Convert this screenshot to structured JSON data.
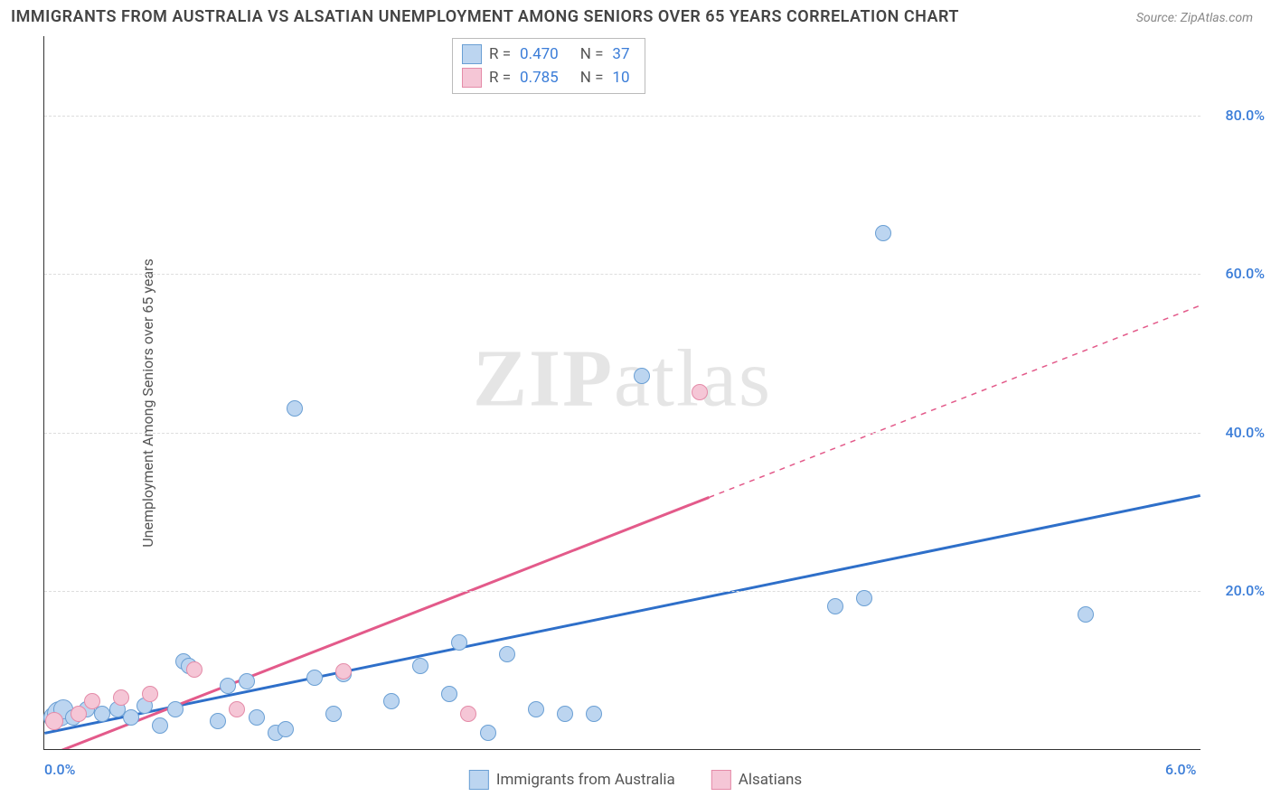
{
  "title": "IMMIGRANTS FROM AUSTRALIA VS ALSATIAN UNEMPLOYMENT AMONG SENIORS OVER 65 YEARS CORRELATION CHART",
  "source_label": "Source:",
  "source_value": "ZipAtlas.com",
  "y_axis_label": "Unemployment Among Seniors over 65 years",
  "watermark_left": "ZIP",
  "watermark_right": "atlas",
  "chart": {
    "type": "scatter-with-regression",
    "xlim": [
      0.0,
      6.0
    ],
    "ylim": [
      0.0,
      90.0
    ],
    "x_ticks": [
      {
        "value": 0.0,
        "label": "0.0%"
      },
      {
        "value": 6.0,
        "label": "6.0%"
      }
    ],
    "y_ticks": [
      {
        "value": 20.0,
        "label": "20.0%"
      },
      {
        "value": 40.0,
        "label": "40.0%"
      },
      {
        "value": 60.0,
        "label": "60.0%"
      },
      {
        "value": 80.0,
        "label": "80.0%"
      }
    ],
    "grid_color": "#dddddd",
    "background_color": "#ffffff",
    "axis_color": "#333333",
    "tick_label_color": "#3b7dd8",
    "series": [
      {
        "id": "australia",
        "label": "Immigrants from Australia",
        "fill_color": "#bcd5f0",
        "stroke_color": "#6a9fd4",
        "line_color": "#2e6fc9",
        "line_width": 3,
        "line_dash": "none",
        "marker_radius": 9,
        "correlation_r": "0.470",
        "correlation_n": "37",
        "regression": {
          "x1": 0.0,
          "y1": 2.0,
          "x2": 6.0,
          "y2": 32.0,
          "solid_until_x": 6.0
        },
        "points": [
          {
            "x": 0.05,
            "y": 4.0,
            "r": 12
          },
          {
            "x": 0.08,
            "y": 4.5,
            "r": 14
          },
          {
            "x": 0.1,
            "y": 5.0,
            "r": 11
          },
          {
            "x": 0.15,
            "y": 4.0,
            "r": 9
          },
          {
            "x": 0.22,
            "y": 5.0,
            "r": 9
          },
          {
            "x": 0.3,
            "y": 4.5,
            "r": 9
          },
          {
            "x": 0.38,
            "y": 5.0,
            "r": 9
          },
          {
            "x": 0.45,
            "y": 4.0,
            "r": 9
          },
          {
            "x": 0.52,
            "y": 5.5,
            "r": 9
          },
          {
            "x": 0.6,
            "y": 3.0,
            "r": 9
          },
          {
            "x": 0.68,
            "y": 5.0,
            "r": 9
          },
          {
            "x": 0.72,
            "y": 11.0,
            "r": 9
          },
          {
            "x": 0.75,
            "y": 10.5,
            "r": 9
          },
          {
            "x": 0.9,
            "y": 3.5,
            "r": 9
          },
          {
            "x": 0.95,
            "y": 8.0,
            "r": 9
          },
          {
            "x": 1.05,
            "y": 8.5,
            "r": 9
          },
          {
            "x": 1.1,
            "y": 4.0,
            "r": 9
          },
          {
            "x": 1.2,
            "y": 2.0,
            "r": 9
          },
          {
            "x": 1.25,
            "y": 2.5,
            "r": 9
          },
          {
            "x": 1.3,
            "y": 43.0,
            "r": 9
          },
          {
            "x": 1.4,
            "y": 9.0,
            "r": 9
          },
          {
            "x": 1.5,
            "y": 4.5,
            "r": 9
          },
          {
            "x": 1.55,
            "y": 9.5,
            "r": 9
          },
          {
            "x": 1.8,
            "y": 6.0,
            "r": 9
          },
          {
            "x": 1.95,
            "y": 10.5,
            "r": 9
          },
          {
            "x": 2.1,
            "y": 7.0,
            "r": 9
          },
          {
            "x": 2.15,
            "y": 13.5,
            "r": 9
          },
          {
            "x": 2.3,
            "y": 2.0,
            "r": 9
          },
          {
            "x": 2.4,
            "y": 12.0,
            "r": 9
          },
          {
            "x": 2.55,
            "y": 5.0,
            "r": 9
          },
          {
            "x": 2.7,
            "y": 4.5,
            "r": 9
          },
          {
            "x": 2.85,
            "y": 4.5,
            "r": 9
          },
          {
            "x": 3.1,
            "y": 47.0,
            "r": 9
          },
          {
            "x": 4.1,
            "y": 18.0,
            "r": 9
          },
          {
            "x": 4.25,
            "y": 19.0,
            "r": 9
          },
          {
            "x": 4.35,
            "y": 65.0,
            "r": 9
          },
          {
            "x": 5.4,
            "y": 17.0,
            "r": 9
          }
        ]
      },
      {
        "id": "alsatians",
        "label": "Alsatians",
        "fill_color": "#f5c6d6",
        "stroke_color": "#e48ba8",
        "line_color": "#e35a8a",
        "line_width": 3,
        "line_dash": "none",
        "marker_radius": 9,
        "correlation_r": "0.785",
        "correlation_n": "10",
        "regression": {
          "x1": 0.0,
          "y1": -1.0,
          "x2": 6.0,
          "y2": 56.0,
          "solid_until_x": 3.45
        },
        "points": [
          {
            "x": 0.05,
            "y": 3.5,
            "r": 10
          },
          {
            "x": 0.18,
            "y": 4.5,
            "r": 9
          },
          {
            "x": 0.25,
            "y": 6.0,
            "r": 9
          },
          {
            "x": 0.4,
            "y": 6.5,
            "r": 9
          },
          {
            "x": 0.55,
            "y": 7.0,
            "r": 9
          },
          {
            "x": 0.78,
            "y": 10.0,
            "r": 9
          },
          {
            "x": 1.0,
            "y": 5.0,
            "r": 9
          },
          {
            "x": 1.55,
            "y": 9.8,
            "r": 9
          },
          {
            "x": 2.2,
            "y": 4.5,
            "r": 9
          },
          {
            "x": 3.4,
            "y": 45.0,
            "r": 9
          }
        ]
      }
    ]
  },
  "legend_r_label": "R =",
  "legend_n_label": "N ="
}
